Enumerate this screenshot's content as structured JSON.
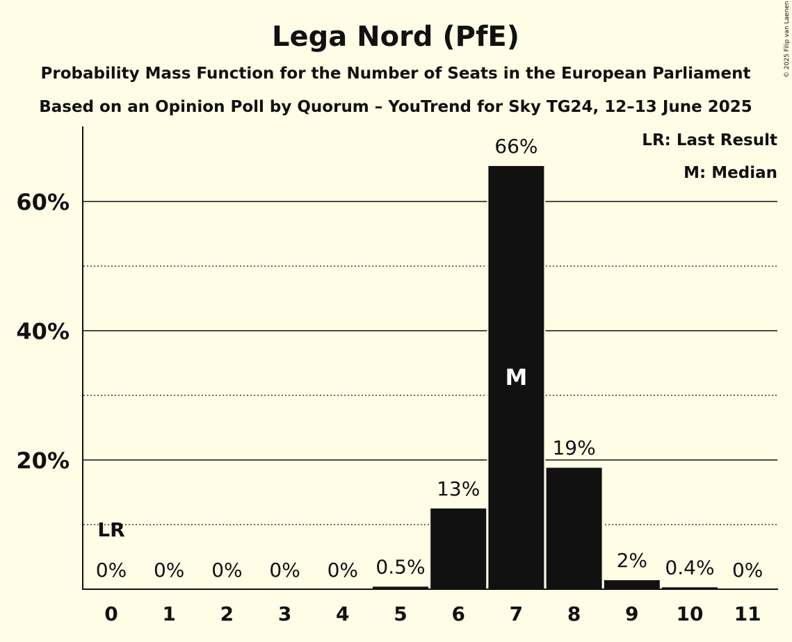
{
  "chart_data": {
    "type": "bar",
    "title": "Lega Nord (PfE)",
    "subtitle": "Probability Mass Function for the Number of Seats in the European Parliament",
    "subtitle2": "Based on an Opinion Poll by Quorum – YouTrend for Sky TG24, 12–13 June 2025",
    "copyright": "© 2025 Filip van Laenen",
    "xlabel": "",
    "ylabel": "",
    "categories": [
      "0",
      "1",
      "2",
      "3",
      "4",
      "5",
      "6",
      "7",
      "8",
      "9",
      "10",
      "11"
    ],
    "values": [
      0,
      0,
      0,
      0,
      0,
      0.5,
      12.6,
      65.6,
      18.9,
      1.5,
      0.4,
      0
    ],
    "data_labels": [
      "0%",
      "0%",
      "0%",
      "0%",
      "0%",
      "0.5%",
      "13%",
      "66%",
      "19%",
      "2%",
      "0.4%",
      "0%"
    ],
    "ylim": [
      0,
      70
    ],
    "yticks": [
      20,
      40,
      60
    ],
    "ytick_labels": [
      "20%",
      "40%",
      "60%"
    ],
    "minor_gridlines": [
      10,
      30,
      50
    ],
    "grid": true,
    "last_result_index": 0,
    "median_index": 7,
    "last_result_marker": "LR",
    "median_marker": "M",
    "legend": [
      "LR: Last Result",
      "M: Median"
    ],
    "legend_placement": "top-right",
    "bar_color": "#111111",
    "background": "#FFFDE6"
  }
}
